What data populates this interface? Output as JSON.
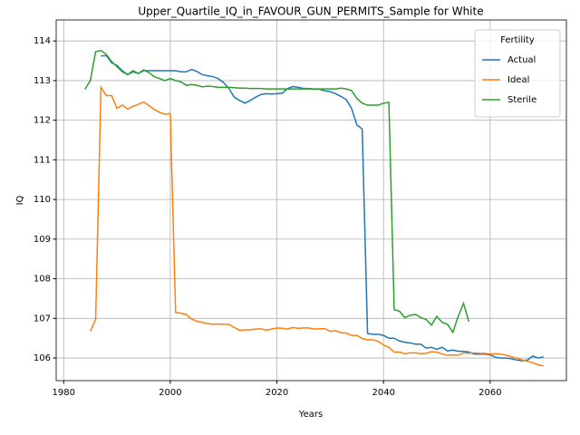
{
  "chart_data": {
    "type": "line",
    "title": "Upper_Quartile_IQ_in_FAVOUR_GUN_PERMITS_Sample for White",
    "x_label": "Years",
    "y_label": "IQ",
    "legend_title": "Fertility",
    "legend": "upper right",
    "grid": true,
    "x": [
      1984,
      1985,
      1986,
      1987,
      1988,
      1989,
      1990,
      1991,
      1992,
      1993,
      1994,
      1995,
      1996,
      1997,
      1998,
      1999,
      2000,
      2001,
      2002,
      2003,
      2004,
      2005,
      2006,
      2007,
      2008,
      2009,
      2010,
      2011,
      2012,
      2013,
      2014,
      2015,
      2016,
      2017,
      2018,
      2019,
      2020,
      2021,
      2022,
      2023,
      2024,
      2025,
      2026,
      2027,
      2028,
      2029,
      2030,
      2031,
      2032,
      2033,
      2034,
      2035,
      2036,
      2037,
      2038,
      2039,
      2040,
      2041,
      2042,
      2043,
      2044,
      2045,
      2046,
      2047,
      2048,
      2049,
      2050,
      2051,
      2052,
      2053,
      2054,
      2055,
      2056,
      2057,
      2058,
      2059,
      2060,
      2061,
      2062,
      2063,
      2064,
      2065,
      2066,
      2067,
      2068,
      2069,
      2070
    ],
    "series": [
      {
        "name": "Actual",
        "color": "#1f77b4",
        "values": [
          null,
          null,
          null,
          113.62,
          113.63,
          113.45,
          113.38,
          113.25,
          113.15,
          113.22,
          113.18,
          113.25,
          113.25,
          113.25,
          113.25,
          113.25,
          113.25,
          113.25,
          113.22,
          113.22,
          113.28,
          113.23,
          113.15,
          113.12,
          113.1,
          113.05,
          112.95,
          112.8,
          112.58,
          112.5,
          112.43,
          112.5,
          112.58,
          112.65,
          112.67,
          112.66,
          112.67,
          112.68,
          112.8,
          112.85,
          112.83,
          112.8,
          112.8,
          112.78,
          112.78,
          112.74,
          112.72,
          112.67,
          112.6,
          112.52,
          112.3,
          111.88,
          111.78,
          106.62,
          106.6,
          106.6,
          106.57,
          106.5,
          106.5,
          106.43,
          106.4,
          106.38,
          106.35,
          106.35,
          106.25,
          106.27,
          106.22,
          106.27,
          106.18,
          106.2,
          106.17,
          106.17,
          106.15,
          106.1,
          106.1,
          106.1,
          106.08,
          106.02,
          106.0,
          106.0,
          105.98,
          105.95,
          105.93,
          105.95,
          106.05,
          106.0,
          106.03
        ]
      },
      {
        "name": "Ideal",
        "color": "#ff7f0e",
        "values": [
          null,
          106.68,
          106.97,
          112.83,
          112.62,
          112.62,
          112.3,
          112.38,
          112.28,
          112.35,
          112.4,
          112.46,
          112.37,
          112.27,
          112.2,
          112.15,
          112.17,
          107.15,
          107.13,
          107.1,
          106.98,
          106.93,
          106.9,
          106.87,
          106.85,
          106.86,
          106.85,
          106.85,
          106.77,
          106.7,
          106.71,
          106.71,
          106.73,
          106.74,
          106.7,
          106.73,
          106.76,
          106.75,
          106.73,
          106.77,
          106.75,
          106.76,
          106.76,
          106.73,
          106.74,
          106.74,
          106.67,
          106.69,
          106.64,
          106.63,
          106.57,
          106.57,
          106.49,
          106.46,
          106.46,
          106.42,
          106.33,
          106.27,
          106.15,
          106.15,
          106.11,
          106.13,
          106.13,
          106.11,
          106.12,
          106.16,
          106.15,
          106.1,
          106.07,
          106.08,
          106.07,
          106.13,
          106.12,
          106.13,
          106.12,
          106.12,
          106.1,
          106.11,
          106.1,
          106.07,
          106.03,
          106.0,
          105.95,
          105.92,
          105.88,
          105.83,
          105.8
        ]
      },
      {
        "name": "Sterile",
        "color": "#2ca02c",
        "values": [
          112.78,
          113.0,
          113.73,
          113.76,
          113.66,
          113.48,
          113.35,
          113.22,
          113.15,
          113.25,
          113.18,
          113.27,
          113.2,
          113.1,
          113.05,
          113.0,
          113.05,
          113.0,
          112.97,
          112.88,
          112.9,
          112.88,
          112.84,
          112.86,
          112.85,
          112.83,
          112.83,
          112.83,
          112.82,
          112.81,
          112.81,
          112.8,
          112.8,
          112.8,
          112.79,
          112.79,
          112.79,
          112.79,
          112.79,
          112.79,
          112.79,
          112.79,
          112.79,
          112.79,
          112.79,
          112.79,
          112.79,
          112.79,
          112.81,
          112.79,
          112.75,
          112.55,
          112.43,
          112.38,
          112.38,
          112.38,
          112.43,
          112.45,
          107.22,
          107.18,
          107.02,
          107.08,
          107.1,
          107.02,
          106.97,
          106.83,
          107.05,
          106.9,
          106.85,
          106.65,
          107.05,
          107.38,
          106.92,
          null,
          null,
          null,
          null,
          null,
          null,
          null,
          null,
          null,
          null,
          null,
          null,
          null,
          null
        ]
      }
    ],
    "xlim": [
      1978.6,
      2074.3
    ],
    "xticks": [
      1980,
      2000,
      2020,
      2040,
      2060
    ],
    "ylim": [
      105.43,
      114.53
    ],
    "yticks": [
      106,
      107,
      108,
      109,
      110,
      111,
      112,
      113,
      114
    ]
  }
}
